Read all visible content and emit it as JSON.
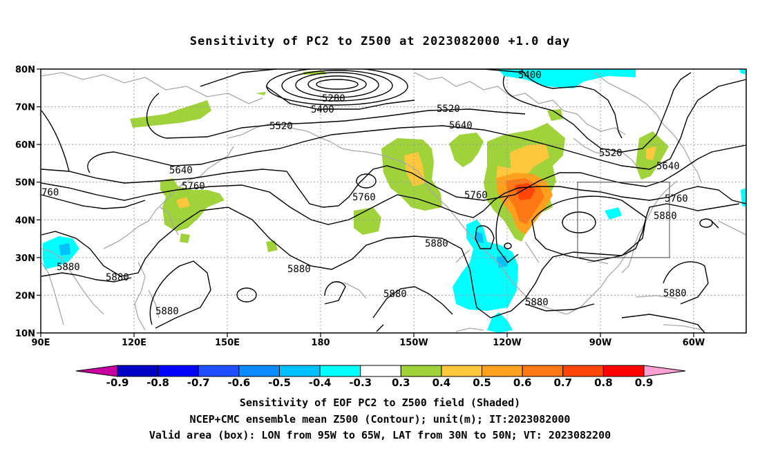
{
  "title": "Sensitivity of PC2 to Z500 at 2023082000 +1.0 day",
  "map": {
    "lat_labels": [
      "80N",
      "70N",
      "60N",
      "50N",
      "40N",
      "30N",
      "20N",
      "10N"
    ],
    "lon_labels": [
      "90E",
      "120E",
      "150E",
      "180",
      "150W",
      "120W",
      "90W",
      "60W"
    ],
    "contour_labels": {
      "c5400a": "5400",
      "c5400b": "5400",
      "c5280": "5280",
      "c5520a": "5520",
      "c5520b": "5520",
      "c5520c": "5520",
      "c5640a": "5640",
      "c5640b": "5640",
      "c5640c": "5640",
      "c5760a": "5760",
      "c5760b": "5760",
      "c5760c": "5760",
      "c5760d": "760",
      "c5760e": "5760",
      "c5880a": "5880",
      "c5880b": "5880",
      "c5880c": "5880",
      "c5880d": "5880",
      "c5880e": "5880",
      "c5880f": "5880",
      "c5880g": "5880",
      "c5880h": "5880",
      "c5880i": "5880"
    },
    "valid_box": {
      "lon_from": "95W",
      "lon_to": "65W",
      "lat_from": "30N",
      "lat_to": "50N"
    }
  },
  "colorbar": {
    "labels": [
      "-0.9",
      "-0.8",
      "-0.7",
      "-0.6",
      "-0.5",
      "-0.4",
      "-0.3",
      "0.3",
      "0.4",
      "0.5",
      "0.6",
      "0.7",
      "0.8",
      "0.9"
    ],
    "colors": [
      "#0000c8",
      "#0000ff",
      "#1e50ff",
      "#0a8cff",
      "#00c0ff",
      "#00ffff",
      "#ffffff",
      "#a0d23c",
      "#ffc83c",
      "#ffa01e",
      "#ff7814",
      "#ff460a",
      "#ff0000"
    ],
    "low_extend_color": "#c800a0",
    "high_extend_color": "#ffa0d2"
  },
  "captions": {
    "line1": "Sensitivity of EOF PC2 to Z500 field (Shaded)",
    "line2": "NCEP+CMC ensemble mean Z500 (Contour); unit(m); IT:2023082000",
    "line3": "Valid area (box): LON from 95W to 65W, LAT from 30N to 50N; VT: 2023082200"
  }
}
